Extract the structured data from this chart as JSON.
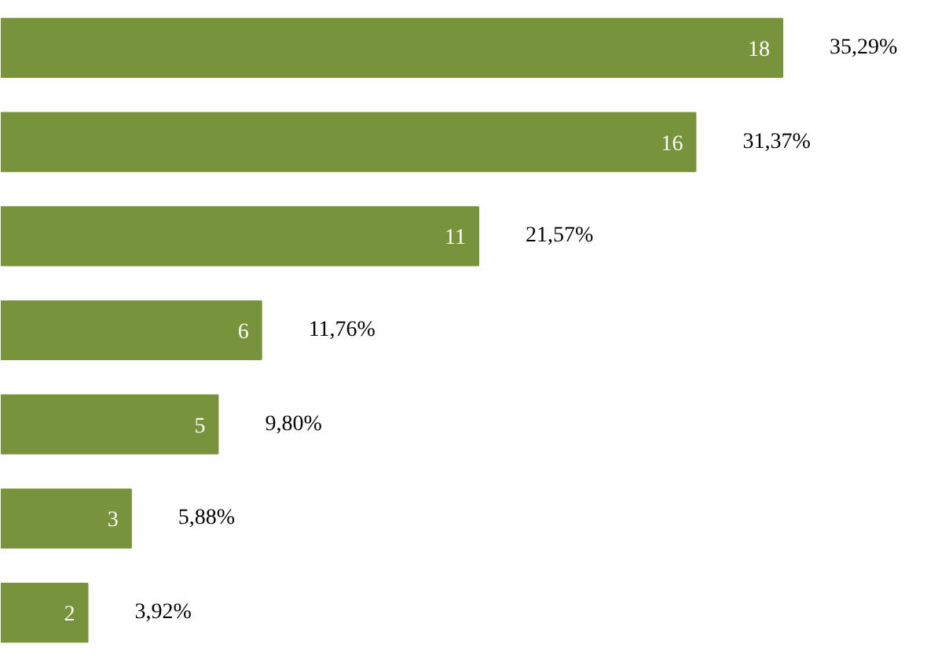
{
  "chart_data": {
    "type": "bar",
    "orientation": "horizontal",
    "categories": [
      null,
      null,
      null,
      null,
      null,
      null,
      null
    ],
    "values": [
      18,
      16,
      11,
      6,
      5,
      3,
      2
    ],
    "color": "#77933c",
    "data_labels": true,
    "annotations": [
      "35,29%",
      "31,37%",
      "21,57%",
      "11,76%",
      "9,80%",
      "5,88%",
      "3,92%"
    ]
  }
}
